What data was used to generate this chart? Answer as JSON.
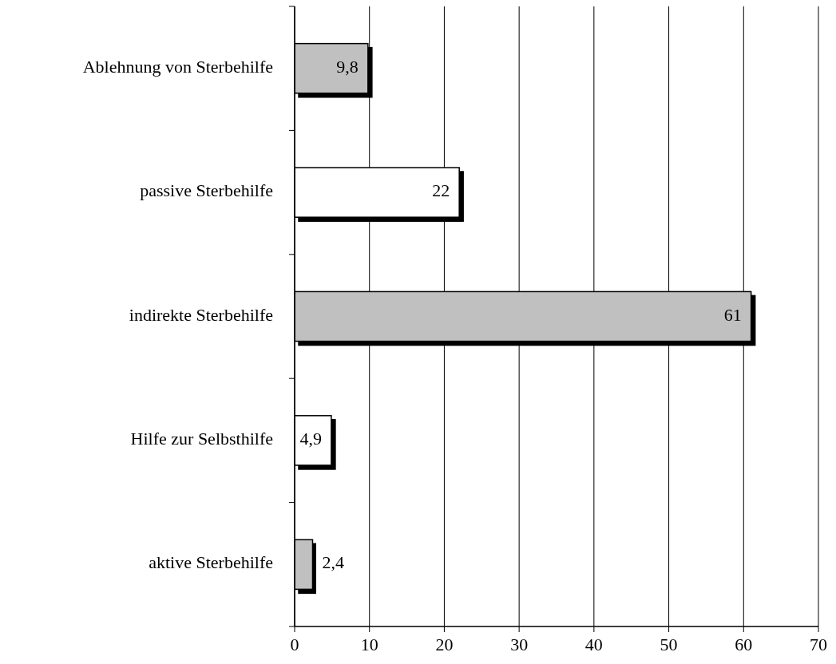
{
  "chart_data": {
    "type": "bar",
    "orientation": "horizontal",
    "categories": [
      "Ablehnung von Sterbehilfe",
      "passive Sterbehilfe",
      "indirekte Sterbehilfe",
      "Hilfe zur Selbsthilfe",
      "aktive Sterbehilfe"
    ],
    "values": [
      9.8,
      22,
      61,
      4.9,
      2.4
    ],
    "colors": [
      "#c0c0c0",
      "#ffffff",
      "#c0c0c0",
      "#ffffff",
      "#c0c0c0"
    ],
    "value_labels": [
      "9,8",
      "22",
      "61",
      "4,9",
      "2,4"
    ],
    "xlim": [
      0,
      70
    ],
    "xticks": [
      0,
      10,
      20,
      30,
      40,
      50,
      60,
      70
    ],
    "grid": "x"
  }
}
